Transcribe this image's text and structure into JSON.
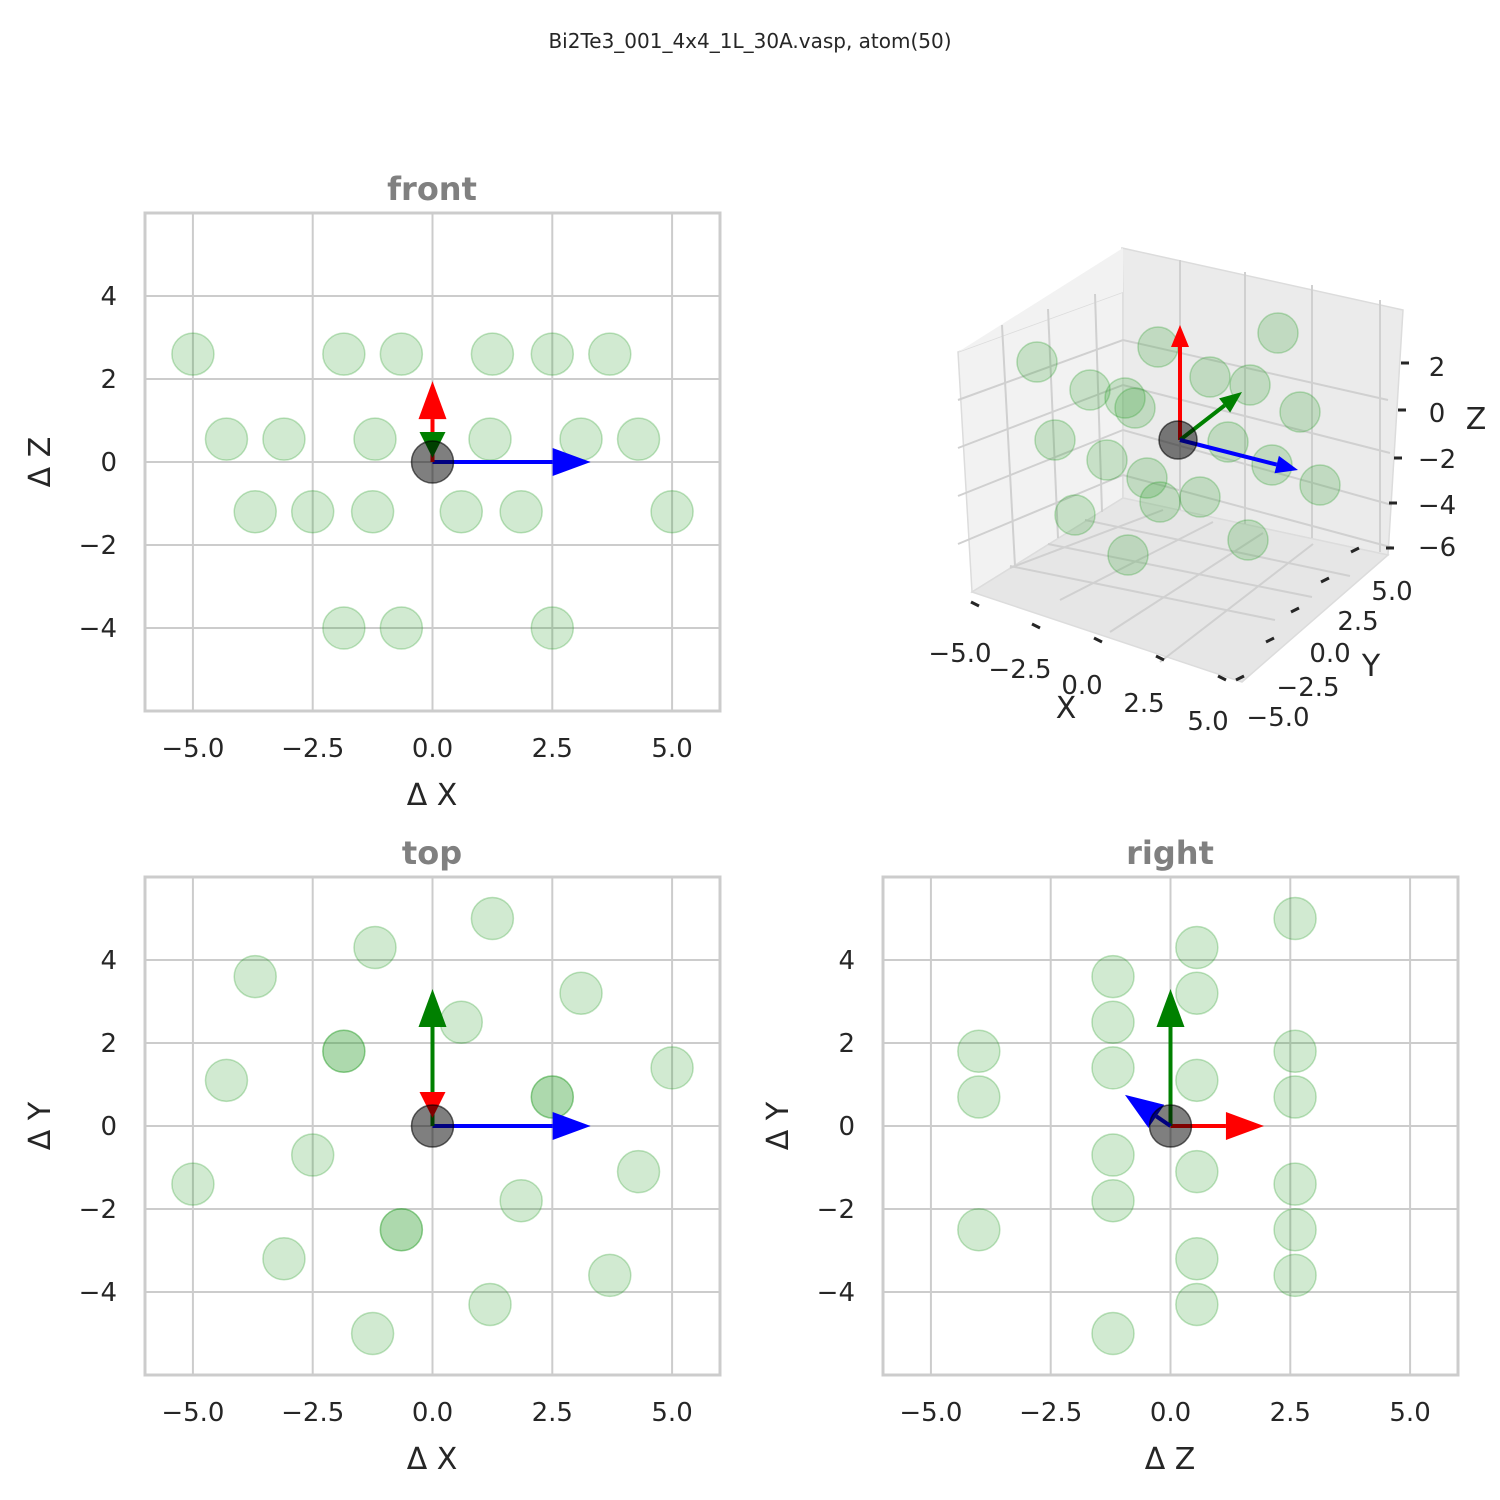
{
  "suptitle": "Bi2Te3_001_4x4_1L_30A.vasp, atom(50)",
  "colors": {
    "atom": "#2ca02c",
    "center": "#000000",
    "x_arrow": "#0000ff",
    "y_arrow": "#008000",
    "z_arrow": "#ff0000",
    "grid": "#cccccc"
  },
  "chart_data": [
    {
      "type": "scatter",
      "title": "front",
      "xlabel": "Δ X",
      "ylabel": "Δ Z",
      "xlim": [
        -6,
        6
      ],
      "ylim": [
        -6,
        6
      ],
      "xticks": [
        "−5.0",
        "−2.5",
        "0.0",
        "2.5",
        "5.0"
      ],
      "yticks": [
        "4",
        "2",
        "0",
        "−2",
        "−4"
      ],
      "points": [
        [
          -5.0,
          2.6
        ],
        [
          -1.85,
          2.6
        ],
        [
          -0.65,
          2.6
        ],
        [
          1.25,
          2.6
        ],
        [
          2.5,
          2.6
        ],
        [
          3.7,
          2.6
        ],
        [
          -4.3,
          0.55
        ],
        [
          -3.1,
          0.55
        ],
        [
          -1.2,
          0.55
        ],
        [
          1.2,
          0.55
        ],
        [
          3.1,
          0.55
        ],
        [
          4.3,
          0.55
        ],
        [
          -3.7,
          -1.2
        ],
        [
          -2.5,
          -1.2
        ],
        [
          -1.25,
          -1.2
        ],
        [
          0.6,
          -1.2
        ],
        [
          1.85,
          -1.2
        ],
        [
          5.0,
          -1.2
        ],
        [
          -1.85,
          -4.0
        ],
        [
          -0.65,
          -4.0
        ],
        [
          2.5,
          -4.0
        ]
      ],
      "center": [
        0,
        0
      ],
      "arrows": [
        {
          "axis": "X",
          "color": "#0000ff",
          "dx": 3.3,
          "dy": 0
        },
        {
          "axis": "Z",
          "color": "#ff0000",
          "dx": 0,
          "dy": 1.95
        },
        {
          "axis": "Y",
          "color": "#008000",
          "dx": 0,
          "dy": 0
        }
      ]
    },
    {
      "type": "scatter3d",
      "title": "",
      "xlabel": "X",
      "ylabel": "Y",
      "zlabel": "Z",
      "xticks": [
        "−5.0",
        "−2.5",
        "0.0",
        "2.5",
        "5.0"
      ],
      "yticks": [
        "−5.0",
        "−2.5",
        "0.0",
        "2.5",
        "5.0"
      ],
      "zticks": [
        "2",
        "0",
        "−2",
        "−4",
        "−6"
      ]
    },
    {
      "type": "scatter",
      "title": "top",
      "xlabel": "Δ X",
      "ylabel": "Δ Y",
      "xlim": [
        -6,
        6
      ],
      "ylim": [
        -6,
        6
      ],
      "xticks": [
        "−5.0",
        "−2.5",
        "0.0",
        "2.5",
        "5.0"
      ],
      "yticks": [
        "4",
        "2",
        "0",
        "−2",
        "−4"
      ],
      "points": [
        [
          1.25,
          5.0
        ],
        [
          -1.2,
          4.3
        ],
        [
          -3.7,
          3.6
        ],
        [
          3.1,
          3.2
        ],
        [
          0.6,
          2.5
        ],
        [
          -1.85,
          1.8
        ],
        [
          -1.85,
          1.8
        ],
        [
          -4.3,
          1.1
        ],
        [
          5.0,
          1.4
        ],
        [
          2.5,
          0.7
        ],
        [
          2.5,
          0.7
        ],
        [
          -2.5,
          -0.7
        ],
        [
          -5.0,
          -1.4
        ],
        [
          4.3,
          -1.1
        ],
        [
          1.85,
          -1.8
        ],
        [
          -0.65,
          -2.5
        ],
        [
          -0.65,
          -2.5
        ],
        [
          -3.1,
          -3.2
        ],
        [
          3.7,
          -3.6
        ],
        [
          1.2,
          -4.3
        ],
        [
          -1.25,
          -5.0
        ]
      ],
      "center": [
        0,
        0
      ],
      "arrows": [
        {
          "axis": "X",
          "color": "#0000ff",
          "dx": 3.3,
          "dy": 0
        },
        {
          "axis": "Y",
          "color": "#008000",
          "dx": 0,
          "dy": 3.3
        },
        {
          "axis": "Z",
          "color": "#ff0000",
          "dx": 0,
          "dy": 0
        }
      ]
    },
    {
      "type": "scatter",
      "title": "right",
      "xlabel": "Δ Z",
      "ylabel": "Δ Y",
      "xlim": [
        -6,
        6
      ],
      "ylim": [
        -6,
        6
      ],
      "xticks": [
        "−5.0",
        "−2.5",
        "0.0",
        "2.5",
        "5.0"
      ],
      "yticks": [
        "4",
        "2",
        "0",
        "−2",
        "−4"
      ],
      "points": [
        [
          -4.0,
          1.8
        ],
        [
          -4.0,
          0.7
        ],
        [
          -4.0,
          -2.5
        ],
        [
          -1.2,
          3.6
        ],
        [
          -1.2,
          2.5
        ],
        [
          -1.2,
          1.4
        ],
        [
          -1.2,
          -0.7
        ],
        [
          -1.2,
          -1.8
        ],
        [
          -1.2,
          -5.0
        ],
        [
          0.55,
          4.3
        ],
        [
          0.55,
          3.2
        ],
        [
          0.55,
          1.1
        ],
        [
          0.55,
          -1.1
        ],
        [
          0.55,
          -3.2
        ],
        [
          0.55,
          -4.3
        ],
        [
          2.6,
          5.0
        ],
        [
          2.6,
          1.8
        ],
        [
          2.6,
          0.7
        ],
        [
          2.6,
          -1.4
        ],
        [
          2.6,
          -2.5
        ],
        [
          2.6,
          -3.6
        ]
      ],
      "center": [
        0,
        0
      ],
      "arrows": [
        {
          "axis": "Z",
          "color": "#ff0000",
          "dx": 1.95,
          "dy": 0
        },
        {
          "axis": "Y",
          "color": "#008000",
          "dx": 0,
          "dy": 3.3
        },
        {
          "axis": "X",
          "color": "#0000ff",
          "dx": -0.95,
          "dy": 0.75
        }
      ]
    }
  ]
}
